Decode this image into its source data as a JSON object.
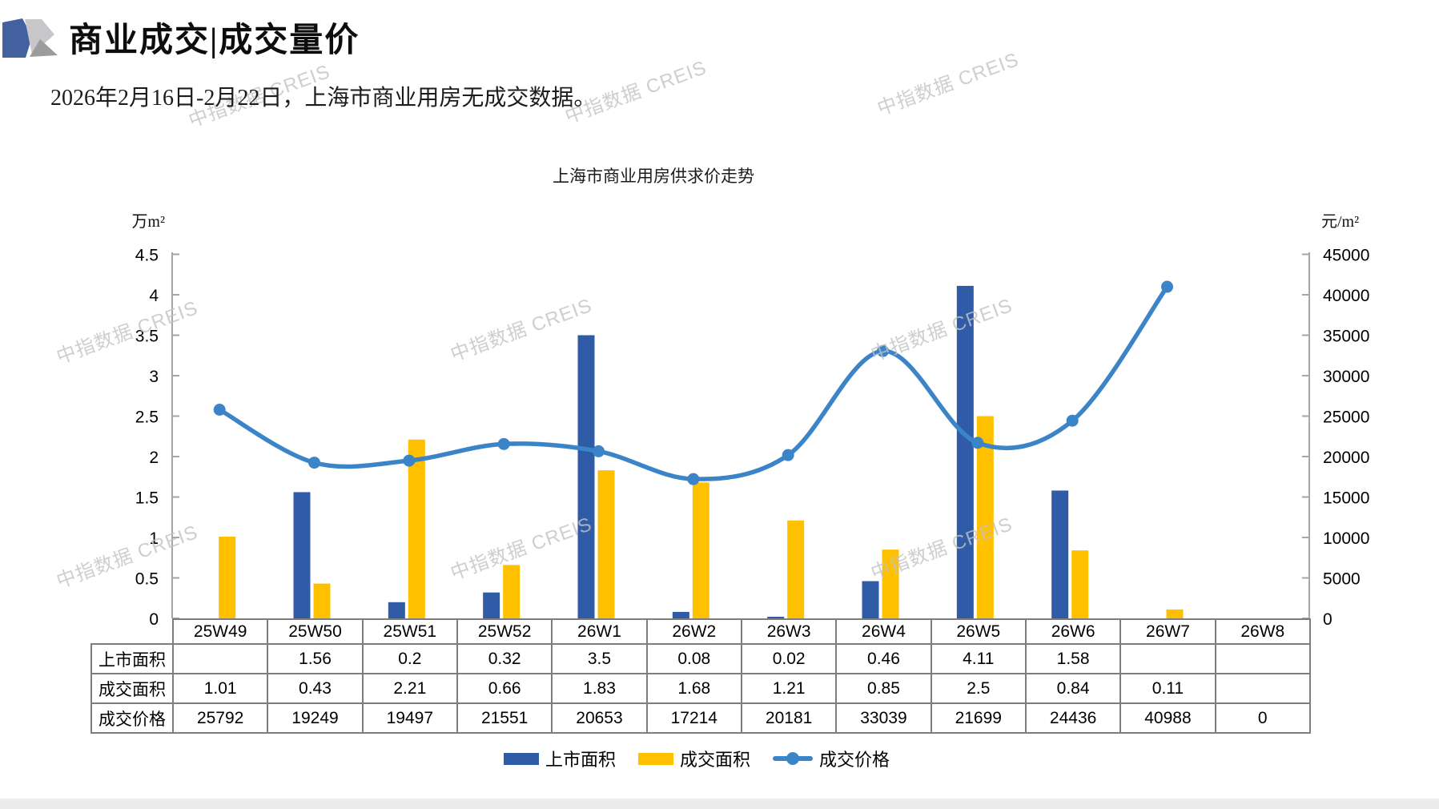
{
  "page": {
    "title": "商业成交|成交量价",
    "subtitle": "2026年2月16日-2月22日，上海市商业用房无成交数据。",
    "watermark": "中指数据 CREIS"
  },
  "chart_data": {
    "type": "combo-bar-line",
    "title": "上海市商业用房供求价走势",
    "left_axis": {
      "unit": "万m²",
      "min": 0,
      "max": 4.5,
      "step": 0.5
    },
    "right_axis": {
      "unit": "元/m²",
      "min": 0,
      "max": 45000,
      "step": 5000
    },
    "categories": [
      "25W49",
      "25W50",
      "25W51",
      "25W52",
      "26W1",
      "26W2",
      "26W3",
      "26W4",
      "26W5",
      "26W6",
      "26W7",
      "26W8"
    ],
    "series": [
      {
        "key": "listed-area",
        "name": "上市面积",
        "type": "bar",
        "axis": "left",
        "color": "#2F5BA7",
        "values": [
          null,
          1.56,
          0.2,
          0.32,
          3.5,
          0.08,
          0.02,
          0.46,
          4.11,
          1.58,
          null,
          null
        ]
      },
      {
        "key": "sold-area",
        "name": "成交面积",
        "type": "bar",
        "axis": "left",
        "color": "#FFC000",
        "values": [
          1.01,
          0.43,
          2.21,
          0.66,
          1.83,
          1.68,
          1.21,
          0.85,
          2.5,
          0.84,
          0.11,
          null
        ]
      },
      {
        "key": "sold-price",
        "name": "成交价格",
        "type": "line",
        "axis": "right",
        "color": "#3C84C8",
        "values": [
          25792,
          19249,
          19497,
          21551,
          20653,
          17214,
          20181,
          33039,
          21699,
          24436,
          40988,
          null
        ]
      }
    ],
    "table_rows": [
      {
        "label": "上市面积",
        "cells": [
          "",
          "1.56",
          "0.2",
          "0.32",
          "3.5",
          "0.08",
          "0.02",
          "0.46",
          "4.11",
          "1.58",
          "",
          ""
        ]
      },
      {
        "label": "成交面积",
        "cells": [
          "1.01",
          "0.43",
          "2.21",
          "0.66",
          "1.83",
          "1.68",
          "1.21",
          "0.85",
          "2.5",
          "0.84",
          "0.11",
          ""
        ]
      },
      {
        "label": "成交价格",
        "cells": [
          "25792",
          "19249",
          "19497",
          "21551",
          "20653",
          "17214",
          "20181",
          "33039",
          "21699",
          "24436",
          "40988",
          "0"
        ]
      }
    ],
    "legend_position": "bottom",
    "grid": false
  }
}
